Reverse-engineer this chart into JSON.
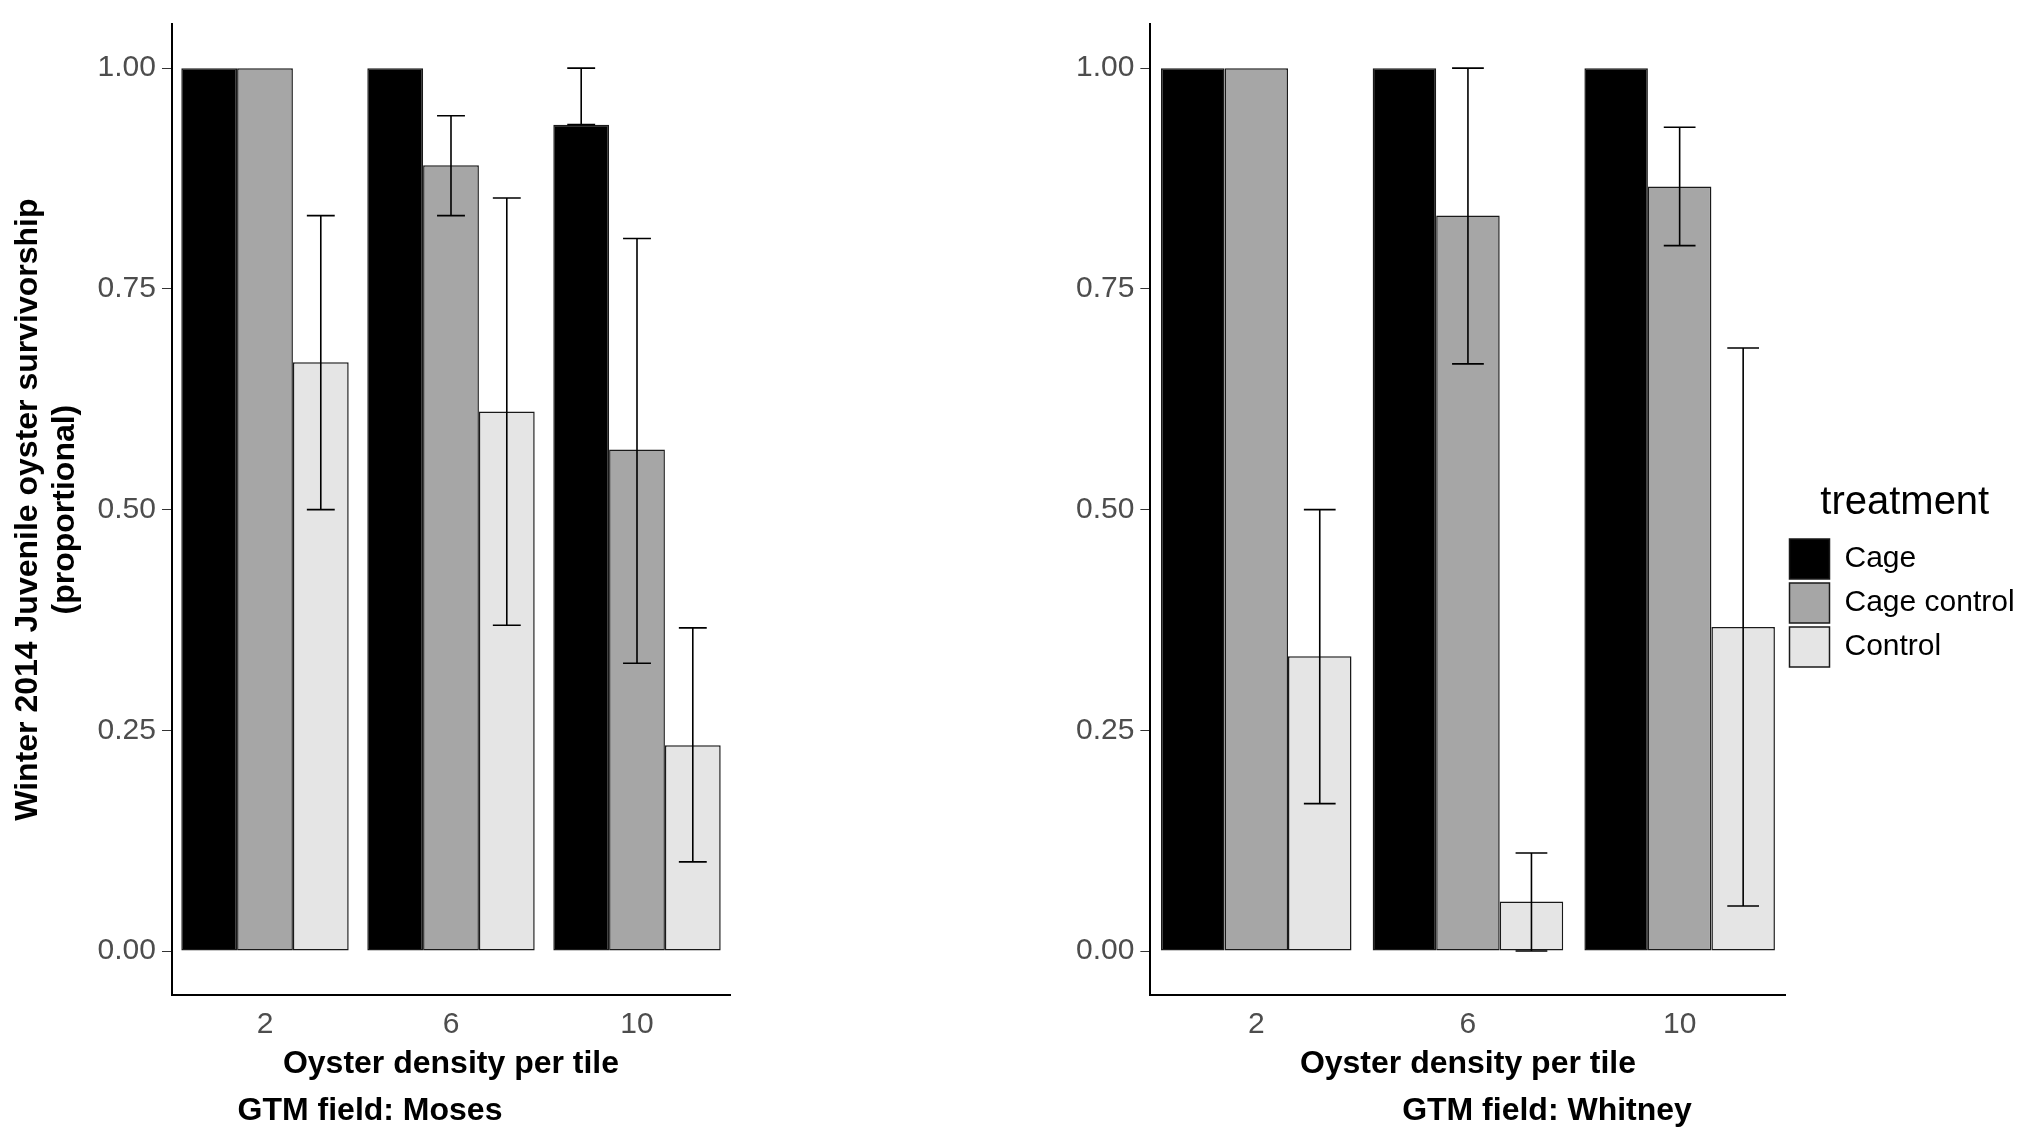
{
  "chart_data": [
    {
      "type": "bar",
      "title": "GTM field: Moses",
      "xlabel": "Oyster density per tile",
      "ylabel": "Winter 2014 Juvenile oyster survivorship\n(proportional)",
      "categories": [
        "2",
        "6",
        "10"
      ],
      "series": [
        {
          "color": "#000000",
          "values": [
            1.0,
            1.0,
            0.936
          ],
          "errors": [
            null,
            null,
            [
              0.936,
              1.0
            ]
          ]
        },
        {
          "color": "#a6a6a6",
          "values": [
            1.0,
            0.89,
            0.568
          ],
          "errors": [
            null,
            [
              0.833,
              0.946
            ],
            [
              0.326,
              0.807
            ]
          ]
        },
        {
          "color": "#e5e5e5",
          "values": [
            0.667,
            0.611,
            0.233
          ],
          "errors": [
            [
              0.5,
              0.833
            ],
            [
              0.369,
              0.853
            ],
            [
              0.101,
              0.366
            ]
          ]
        }
      ],
      "ylim": [
        -0.05,
        1.05
      ],
      "yticks": [
        {
          "value": 0,
          "label": "0.00"
        },
        {
          "value": 0.25,
          "label": "0.25"
        },
        {
          "value": 0.5,
          "label": "0.50"
        },
        {
          "value": 0.75,
          "label": "0.75"
        },
        {
          "value": 1,
          "label": "1.00"
        }
      ],
      "grid": false,
      "legend": false
    },
    {
      "type": "bar",
      "title": "GTM field: Whitney",
      "xlabel": "Oyster density per tile",
      "legend_title": "treatment",
      "categories": [
        "2",
        "6",
        "10"
      ],
      "series": [
        {
          "name": "Cage",
          "color": "#000000",
          "values": [
            1.0,
            1.0,
            1.0
          ]
        },
        {
          "name": "Cage control",
          "color": "#a6a6a6",
          "values": [
            1.0,
            0.833,
            0.866
          ],
          "errors": [
            null,
            [
              0.665,
              1.0
            ],
            [
              0.799,
              0.933
            ]
          ]
        },
        {
          "name": "Control",
          "color": "#e5e5e5",
          "values": [
            0.334,
            0.056,
            0.367
          ],
          "errors": [
            [
              0.167,
              0.5
            ],
            [
              0.0,
              0.111
            ],
            [
              0.051,
              0.683
            ]
          ]
        }
      ],
      "ylim": [
        -0.05,
        1.05
      ],
      "yticks": [
        {
          "value": 0,
          "label": "0.00"
        },
        {
          "value": 0.25,
          "label": "0.25"
        },
        {
          "value": 0.5,
          "label": "0.50"
        },
        {
          "value": 0.75,
          "label": "0.75"
        },
        {
          "value": 1,
          "label": "1.00"
        }
      ],
      "grid": false,
      "legend": "right"
    }
  ]
}
